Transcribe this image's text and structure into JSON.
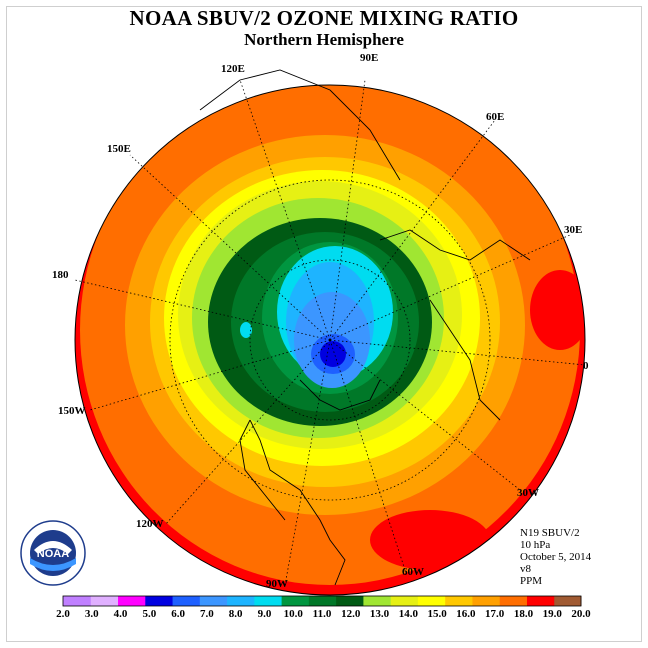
{
  "title": "NOAA SBUV/2 OZONE MIXING RATIO",
  "subtitle": "Northern Hemisphere",
  "longitude_labels": {
    "e90": "90E",
    "e60": "60E",
    "e30": "30E",
    "zero": "0",
    "w30": "30W",
    "w60": "60W",
    "w90": "90W",
    "w120": "120W",
    "w150": "150W",
    "l180": "180",
    "e150": "150E",
    "e120": "120E"
  },
  "info": {
    "instrument": "N19 SBUV/2",
    "level": "10 hPa",
    "date": "October 5, 2014",
    "version": "v8",
    "units": "PPM"
  },
  "colorbar": {
    "labels": [
      "2.0",
      "3.0",
      "4.0",
      "5.0",
      "6.0",
      "7.0",
      "8.0",
      "9.0",
      "10.0",
      "11.0",
      "12.0",
      "13.0",
      "14.0",
      "15.0",
      "16.0",
      "17.0",
      "18.0",
      "19.0",
      "20.0"
    ],
    "colors": [
      "#c080ff",
      "#e0b0ff",
      "#ff00ff",
      "#0000e0",
      "#1e60ff",
      "#3c96ff",
      "#1eb4ff",
      "#00dcf0",
      "#009640",
      "#007828",
      "#005a14",
      "#a0e632",
      "#e6f014",
      "#ffff00",
      "#ffc800",
      "#ffa000",
      "#ff6e00",
      "#ff0000",
      "#a05a32"
    ]
  },
  "logo": {
    "text": "NOAA",
    "ring_text": "NATIONAL OCEANIC AND ATMOSPHERIC ADMINISTRATION · U.S. DEPARTMENT OF COMMERCE"
  }
}
